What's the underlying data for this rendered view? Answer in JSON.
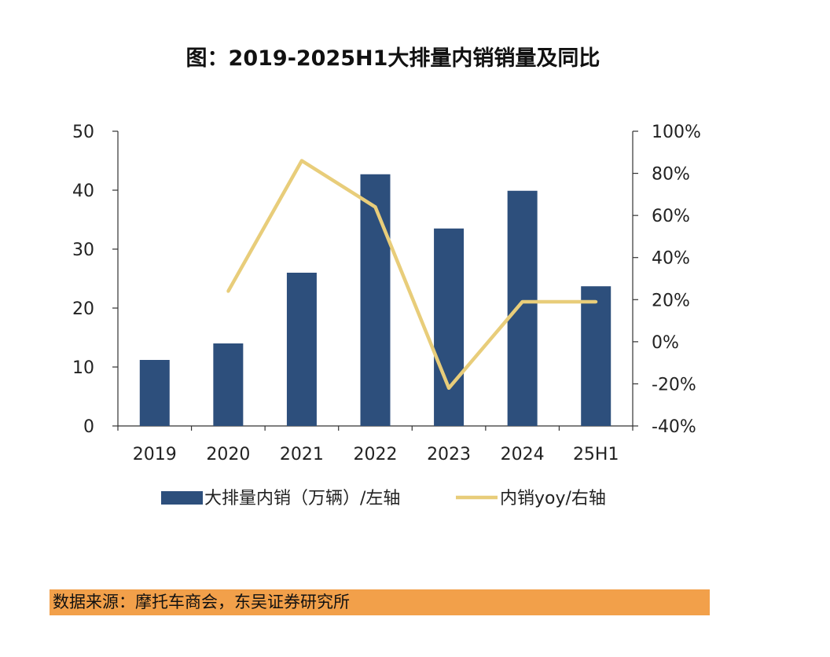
{
  "title": "图：2019-2025H1大排量内销销量及同比",
  "source": "数据来源：摩托车商会，东吴证券研究所",
  "chart_data": {
    "type": "bar+line",
    "categories": [
      "2019",
      "2020",
      "2021",
      "2022",
      "2023",
      "2024",
      "25H1"
    ],
    "series": [
      {
        "name": "大排量内销（万辆）/左轴",
        "type": "bar",
        "axis": "left",
        "color": "#2d4f7c",
        "values": [
          11.2,
          14.0,
          26.0,
          42.7,
          33.5,
          39.9,
          23.7
        ]
      },
      {
        "name": "内销yoy/右轴",
        "type": "line",
        "axis": "right",
        "color": "#e8cd7a",
        "values": [
          null,
          24,
          86,
          64,
          -22,
          19,
          19
        ]
      }
    ],
    "left_axis": {
      "min": 0,
      "max": 50,
      "ticks": [
        "0",
        "10",
        "20",
        "30",
        "40",
        "50"
      ]
    },
    "right_axis": {
      "min": -40,
      "max": 100,
      "ticks": [
        "-40%",
        "-20%",
        "0%",
        "20%",
        "40%",
        "60%",
        "80%",
        "100%"
      ]
    },
    "legend_position": "bottom"
  }
}
